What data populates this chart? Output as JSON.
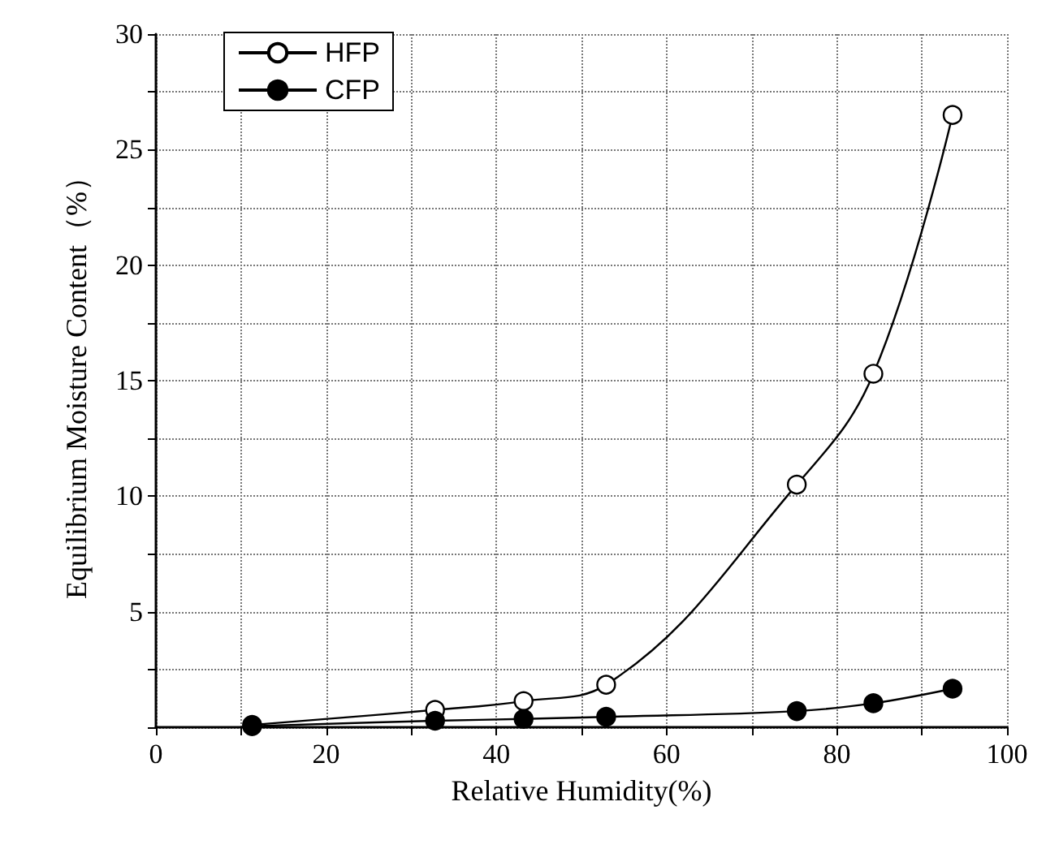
{
  "chart_data": {
    "type": "line",
    "xlabel": "Relative Humidity(%)",
    "ylabel": "Equilibrium Moisture Content（%）",
    "x": [
      11.3,
      32.8,
      43.2,
      52.9,
      75.3,
      84.3,
      93.6
    ],
    "series": [
      {
        "name": "HFP",
        "color": "#ffffff",
        "values": [
          0.1,
          0.75,
          1.13,
          1.84,
          10.5,
          15.3,
          26.5
        ]
      },
      {
        "name": "CFP",
        "color": "#000000",
        "values": [
          0.05,
          0.28,
          0.36,
          0.45,
          0.7,
          1.04,
          1.67
        ]
      }
    ],
    "xlim": [
      0,
      100
    ],
    "ylim": [
      0,
      30
    ],
    "xticks": [
      0,
      {
        "value": 10,
        "label": null
      },
      20,
      {
        "value": 30,
        "label": null
      },
      40,
      {
        "value": 50,
        "label": null
      },
      60,
      {
        "value": 70,
        "label": null
      },
      80,
      {
        "value": 90,
        "label": null
      },
      100
    ],
    "yticks": [
      {
        "value": 0,
        "label": null
      },
      {
        "value": 2.5,
        "label": null
      },
      5,
      {
        "value": 7.5,
        "label": null
      },
      10,
      {
        "value": 12.5,
        "label": null
      },
      15,
      {
        "value": 17.5,
        "label": null
      },
      20,
      {
        "value": 22.5,
        "label": null
      },
      25,
      {
        "value": 27.5,
        "label": null
      },
      30
    ],
    "grid": true,
    "legend": "top left",
    "marker": "circle",
    "line_style": "solid"
  }
}
